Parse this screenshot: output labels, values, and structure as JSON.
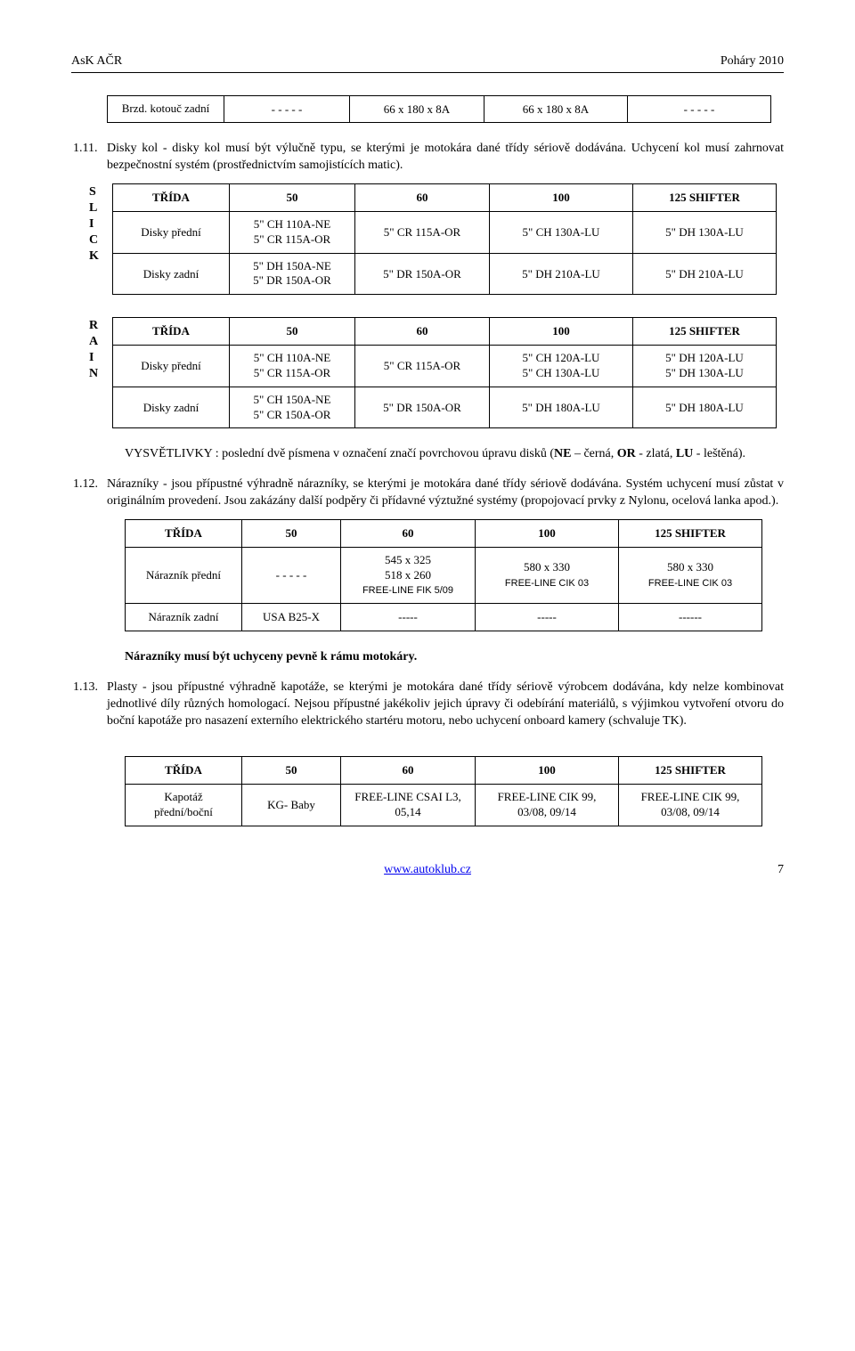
{
  "header": {
    "left": "AsK AČR",
    "right": "Poháry 2010"
  },
  "tables": {
    "brake": {
      "rows": [
        {
          "label": "Brzd. kotouč zadní",
          "c50": "- - - - -",
          "c60": "66 x 180 x 8A",
          "c100": "66 x 180 x 8A",
          "c125": "- - - - -"
        }
      ]
    },
    "para_1_11": {
      "num": "1.11.",
      "text": "Disky kol - disky kol musí být výlučně typu, se kterými je motokára dané třídy sériově dodávána. Uchycení kol musí zahrnovat bezpečnostní systém (prostřednictvím samojistících matic)."
    },
    "slick": {
      "side": "SLICK",
      "header": {
        "label": "TŘÍDA",
        "c50": "50",
        "c60": "60",
        "c100": "100",
        "c125": "125 SHIFTER"
      },
      "rows": [
        {
          "label": "Disky přední",
          "c50": "5\" CH 110A-NE\n5\" CR 115A-OR",
          "c60": "5\" CR 115A-OR",
          "c100": "5\" CH 130A-LU",
          "c125": "5\" DH 130A-LU"
        },
        {
          "label": "Disky zadní",
          "c50": "5\" DH 150A-NE\n5\" DR 150A-OR",
          "c60": "5\" DR 150A-OR",
          "c100": "5\" DH 210A-LU",
          "c125": "5\" DH 210A-LU"
        }
      ]
    },
    "rain": {
      "side": "RAIN",
      "header": {
        "label": "TŘÍDA",
        "c50": "50",
        "c60": "60",
        "c100": "100",
        "c125": "125 SHIFTER"
      },
      "rows": [
        {
          "label": "Disky přední",
          "c50": "5\" CH 110A-NE\n5\" CR 115A-OR",
          "c60": "5\" CR 115A-OR",
          "c100": "5\" CH 120A-LU\n5\" CH 130A-LU",
          "c125": "5\" DH 120A-LU\n5\" DH 130A-LU"
        },
        {
          "label": "Disky zadní",
          "c50": "5\" CH 150A-NE\n5\" CR 150A-OR",
          "c60": "5\" DR 150A-OR",
          "c100": "5\" DH 180A-LU",
          "c125": "5\" DH 180A-LU"
        }
      ]
    },
    "vysvetlivky": "VYSVĚTLIVKY : poslední dvě písmena v označení značí povrchovou úpravu disků (NE – černá, OR - zlatá, LU - leštěná).",
    "para_1_12": {
      "num": "1.12.",
      "text": "Nárazníky - jsou přípustné výhradně nárazníky, se kterými je motokára dané třídy sériově dodávána.  Systém uchycení musí zůstat v originálním provedení. Jsou zakázány  další podpěry či přídavné výztužné systémy (propojovací prvky z Nylonu, ocelová lanka apod.)."
    },
    "bumpers": {
      "header": {
        "label": "TŘÍDA",
        "c50": "50",
        "c60": "60",
        "c100": "100",
        "c125": "125 SHIFTER"
      },
      "rows": [
        {
          "label": "Nárazník přední",
          "c50": "- - - - -",
          "c60a": "545 x 325",
          "c60b": "518 x 260",
          "c60c": "FREE-LINE FIK 5/09",
          "c100a": "580 x 330",
          "c100b": "FREE-LINE CIK 03",
          "c125a": "580 x 330",
          "c125b": "FREE-LINE CIK 03"
        },
        {
          "label": "Nárazník zadní",
          "c50": "USA B25-X",
          "c60": "-----",
          "c100": "-----",
          "c125": "------"
        }
      ]
    },
    "bumper_note": "Nárazníky musí být uchyceny pevně k rámu motokáry.",
    "para_1_13": {
      "num": "1.13.",
      "text": "Plasty - jsou přípustné výhradně kapotáže, se kterými je motokára dané třídy sériově výrobcem dodávána, kdy nelze kombinovat jednotlivé díly různých homologací. Nejsou přípustné jakékoliv jejich úpravy či odebírání materiálů, s výjimkou vytvoření otvoru do boční kapotáže pro nasazení externího elektrického startéru motoru, nebo uchycení onboard kamery (schvaluje TK)."
    },
    "plastics": {
      "header": {
        "label": "TŘÍDA",
        "c50": "50",
        "c60": "60",
        "c100": "100",
        "c125": "125 SHIFTER"
      },
      "rows": [
        {
          "label": "Kapotáž přední/boční",
          "c50": "KG- Baby",
          "c60": "FREE-LINE CSAI L3, 05,14",
          "c100": "FREE-LINE CIK 99, 03/08, 09/14",
          "c125": "FREE-LINE CIK 99, 03/08, 09/14"
        }
      ]
    }
  },
  "footer": {
    "url": "www.autoklub.cz",
    "page": "7"
  }
}
